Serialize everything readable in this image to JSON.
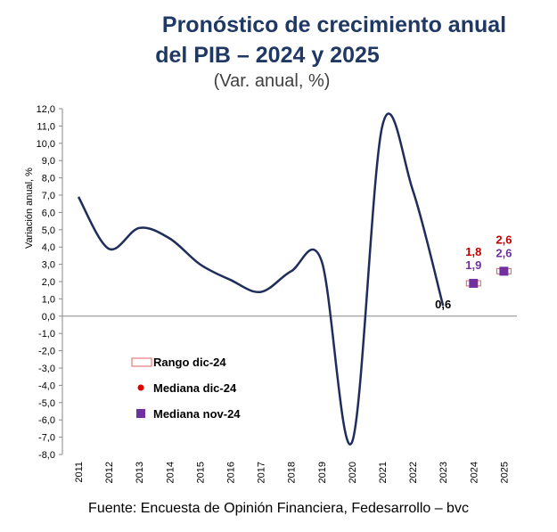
{
  "title_line1": "Pronóstico de crecimiento anual",
  "title_line2": "del PIB – 2024 y 2025",
  "subtitle": "(Var. anual, %)",
  "source": "Fuente: Encuesta de Opinión Financiera, Fedesarrollo – bvc",
  "colors": {
    "title": "#1f3864",
    "line": "#1f2d5a",
    "median_dic": "#e00000",
    "median_nov": "#7030a0",
    "range": "#e06060",
    "label_dic": "#c00000",
    "label_nov": "#7030a0"
  },
  "chart_data": {
    "type": "line",
    "title": "Pronóstico de crecimiento anual del PIB – 2024 y 2025",
    "subtitle": "(Var. anual, %)",
    "ylabel": "Variación anual, %",
    "xlabel": "",
    "ylim": [
      -8,
      12
    ],
    "ytick_step": 1,
    "yticks": [
      "12,0",
      "11,0",
      "10,0",
      "9,0",
      "8,0",
      "7,0",
      "6,0",
      "5,0",
      "4,0",
      "3,0",
      "2,0",
      "1,0",
      "0,0",
      "-1,0",
      "-2,0",
      "-3,0",
      "-4,0",
      "-5,0",
      "-6,0",
      "-7,0",
      "-8,0"
    ],
    "categories": [
      "2011",
      "2012",
      "2013",
      "2014",
      "2015",
      "2016",
      "2017",
      "2018",
      "2019",
      "2020",
      "2021",
      "2022",
      "2023",
      "2024",
      "2025"
    ],
    "historical": {
      "name": "PIB",
      "x": [
        "2011",
        "2012",
        "2013",
        "2014",
        "2015",
        "2016",
        "2017",
        "2018",
        "2019",
        "2020",
        "2021",
        "2022",
        "2023"
      ],
      "values": [
        6.9,
        3.9,
        5.1,
        4.5,
        3.0,
        2.1,
        1.4,
        2.6,
        3.2,
        -7.3,
        11.0,
        7.3,
        0.6
      ]
    },
    "last_value_label": "0,6",
    "forecasts": [
      {
        "year": "2024",
        "range_low": 1.8,
        "range_high": 2.0,
        "median_dic": 1.8,
        "median_nov": 1.9,
        "label_dic": "1,8",
        "label_nov": "1,9"
      },
      {
        "year": "2025",
        "range_low": 2.5,
        "range_high": 2.7,
        "median_dic": 2.6,
        "median_nov": 2.6,
        "label_dic": "2,6",
        "label_nov": "2,6"
      }
    ],
    "legend": [
      {
        "key": "range",
        "label": "Rango dic-24"
      },
      {
        "key": "median_dic",
        "label": "Mediana dic-24"
      },
      {
        "key": "median_nov",
        "label": "Mediana nov-24"
      }
    ],
    "legend_position": "bottom-left",
    "grid": false
  }
}
